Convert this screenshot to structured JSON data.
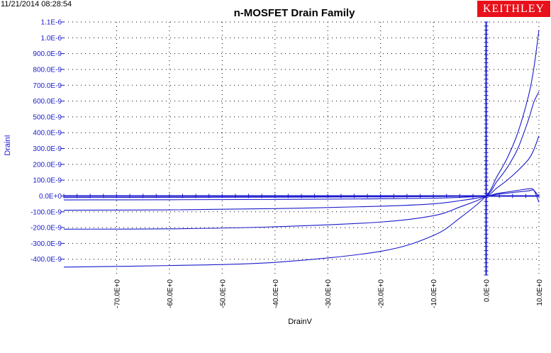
{
  "header": {
    "timestamp": "11/21/2014 08:28:54",
    "brand": "KEITHLEY"
  },
  "chart_data": {
    "type": "line",
    "title": "n-MOSFET Drain Family",
    "xlabel": "DrainV",
    "ylabel": "DrainI",
    "xlim": [
      -80,
      10
    ],
    "ylim": [
      -4.5e-07,
      1.1e-06
    ],
    "grid": true,
    "colors": {
      "line": "#1a1acc",
      "axis": "#1a1acc",
      "flat_line": "#000000"
    },
    "x_ticks": [
      {
        "value": -70,
        "label": "-70.0E+0"
      },
      {
        "value": -60,
        "label": "-60.0E+0"
      },
      {
        "value": -50,
        "label": "-50.0E+0"
      },
      {
        "value": -40,
        "label": "-40.0E+0"
      },
      {
        "value": -30,
        "label": "-30.0E+0"
      },
      {
        "value": -20,
        "label": "-20.0E+0"
      },
      {
        "value": -10,
        "label": "-10.0E+0"
      },
      {
        "value": 0,
        "label": "0.0E+0"
      },
      {
        "value": 10,
        "label": "10.0E+0"
      }
    ],
    "y_ticks": [
      {
        "value": 1.1e-06,
        "label": "1.1E-6"
      },
      {
        "value": 1e-06,
        "label": "1.0E-6"
      },
      {
        "value": 9e-07,
        "label": "900.0E-9"
      },
      {
        "value": 8e-07,
        "label": "800.0E-9"
      },
      {
        "value": 7e-07,
        "label": "700.0E-9"
      },
      {
        "value": 6e-07,
        "label": "600.0E-9"
      },
      {
        "value": 5e-07,
        "label": "500.0E-9"
      },
      {
        "value": 4e-07,
        "label": "400.0E-9"
      },
      {
        "value": 3e-07,
        "label": "300.0E-9"
      },
      {
        "value": 2e-07,
        "label": "200.0E-9"
      },
      {
        "value": 1e-07,
        "label": "100.0E-9"
      },
      {
        "value": 0,
        "label": "0.0E+0"
      },
      {
        "value": -1e-07,
        "label": "-100.0E-9"
      },
      {
        "value": -2e-07,
        "label": "-200.0E-9"
      },
      {
        "value": -3e-07,
        "label": "-300.0E-9"
      },
      {
        "value": -4e-07,
        "label": "-400.0E-9"
      }
    ],
    "series": [
      {
        "name": "curve-1",
        "color": "#1a1acc",
        "x": [
          -80,
          -60,
          -40,
          -20,
          -10,
          -5,
          0,
          2,
          4,
          6,
          8,
          9,
          10
        ],
        "y": [
          -4.5e-07,
          -4.4e-07,
          -4.2e-07,
          -3.5e-07,
          -2.5e-07,
          -1.4e-07,
          0,
          1.2e-07,
          2.4e-07,
          4e-07,
          6.3e-07,
          8e-07,
          1.05e-06
        ]
      },
      {
        "name": "curve-2",
        "color": "#1a1acc",
        "x": [
          -80,
          -60,
          -40,
          -20,
          -10,
          -5,
          0,
          2,
          4,
          6,
          8,
          9,
          10
        ],
        "y": [
          -2.1e-07,
          -2.08e-07,
          -1.95e-07,
          -1.65e-07,
          -1.25e-07,
          -7e-08,
          0,
          9e-08,
          1.8e-07,
          3e-07,
          4.8e-07,
          5.9e-07,
          6.6e-07
        ]
      },
      {
        "name": "curve-3",
        "color": "#1a1acc",
        "x": [
          -80,
          -60,
          -40,
          -20,
          -10,
          -5,
          0,
          2,
          4,
          6,
          8,
          9,
          10
        ],
        "y": [
          -9e-08,
          -8.8e-08,
          -8e-08,
          -6.5e-08,
          -5e-08,
          -3e-08,
          0,
          5e-08,
          1e-07,
          1.6e-07,
          2.3e-07,
          2.9e-07,
          3.8e-07
        ]
      },
      {
        "name": "curve-4",
        "color": "#1a1acc",
        "x": [
          -80,
          -60,
          -40,
          -20,
          -10,
          -5,
          0,
          2,
          4,
          6,
          8,
          9,
          10
        ],
        "y": [
          -2.5e-08,
          -2.4e-08,
          -2.2e-08,
          -1.8e-08,
          -1.4e-08,
          -9e-09,
          0,
          1e-08,
          1.8e-08,
          2.5e-08,
          3.2e-08,
          3.6e-08,
          -5e-09
        ]
      },
      {
        "name": "curve-5",
        "color": "#1a1acc",
        "x": [
          -80,
          -60,
          -40,
          -20,
          -10,
          -5,
          0,
          2,
          4,
          6,
          8,
          9,
          10
        ],
        "y": [
          -1e-08,
          -9e-09,
          -8e-09,
          -6e-09,
          -4e-09,
          -2e-09,
          0,
          1.5e-08,
          2.5e-08,
          3.5e-08,
          4.5e-08,
          3.8e-08,
          -4e-08
        ]
      },
      {
        "name": "curve-6",
        "color": "#000000",
        "x": [
          -80,
          -40,
          0,
          10
        ],
        "y": [
          -2e-09,
          -1.5e-09,
          0,
          1e-09
        ]
      }
    ]
  }
}
